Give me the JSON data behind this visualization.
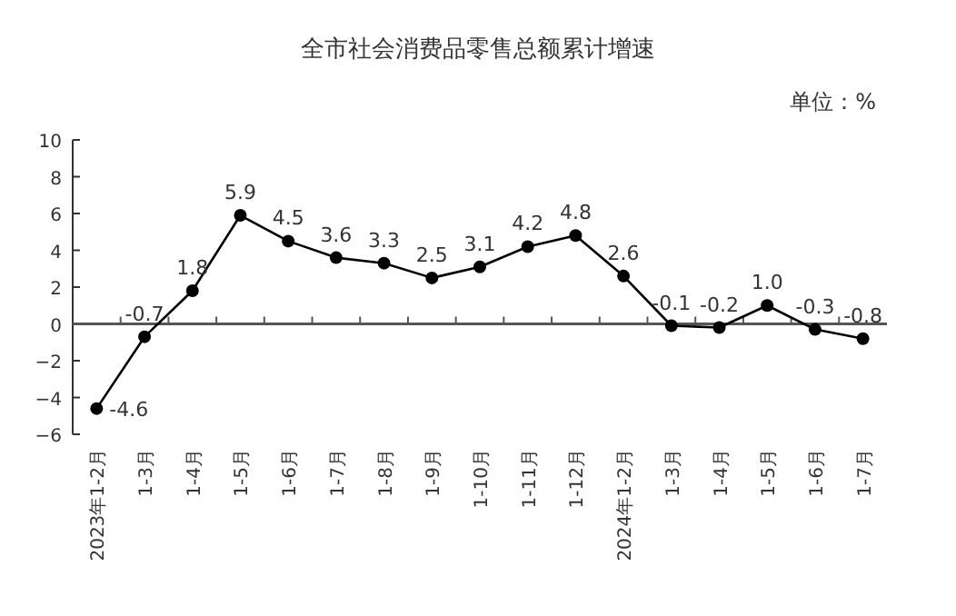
{
  "chart_data": {
    "type": "line",
    "title": "全市社会消费品零售总额累计增速",
    "annotations": [
      "单位：%"
    ],
    "categories": [
      "2023年1-2月",
      "1-3月",
      "1-4月",
      "1-5月",
      "1-6月",
      "1-7月",
      "1-8月",
      "1-9月",
      "1-10月",
      "1-11月",
      "1-12月",
      "2024年1-2月",
      "1-3月",
      "1-4月",
      "1-5月",
      "1-6月",
      "1-7月"
    ],
    "series": [
      {
        "color": "#000000",
        "values": [
          -4.6,
          -0.7,
          1.8,
          5.9,
          4.5,
          3.6,
          3.3,
          2.5,
          3.1,
          4.2,
          4.8,
          2.6,
          -0.1,
          -0.2,
          1.0,
          -0.3,
          -0.8
        ]
      }
    ],
    "ylim": [
      -6,
      10
    ],
    "yticks": [
      -6,
      -4,
      -2,
      0,
      2,
      4,
      6,
      8,
      10
    ],
    "value_labels": [
      "-4.6",
      "-0.7",
      "1.8",
      "5.9",
      "4.5",
      "3.6",
      "3.3",
      "2.5",
      "3.1",
      "4.2",
      "4.8",
      "2.6",
      "-0.1",
      "-0.2",
      "1.0",
      "-0.3",
      "-0.8"
    ],
    "marker": "circle",
    "line_style": "solid"
  }
}
